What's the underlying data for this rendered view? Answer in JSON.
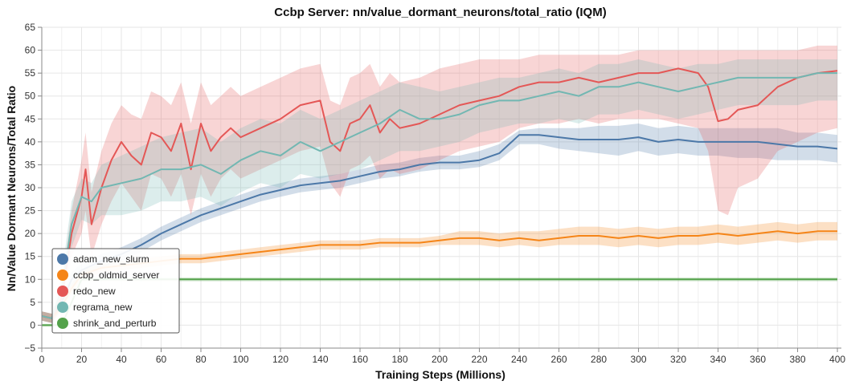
{
  "chart_data": {
    "type": "line",
    "title": "Ccbp Server: nn/value_dormant_neurons/total_ratio (IQM)",
    "xlabel": "Training Steps (Millions)",
    "ylabel": "Nn/Value Dormant Neurons/Total Ratio",
    "xlim": [
      0,
      402
    ],
    "ylim": [
      -5,
      65
    ],
    "xticks": [
      0,
      20,
      40,
      60,
      80,
      100,
      120,
      140,
      160,
      180,
      200,
      220,
      240,
      260,
      280,
      300,
      320,
      340,
      360,
      380,
      400
    ],
    "yticks": [
      -5,
      0,
      5,
      10,
      15,
      20,
      25,
      30,
      35,
      40,
      45,
      50,
      55,
      60,
      65
    ],
    "grid": true,
    "legend_position": "bottom-left",
    "series": [
      {
        "name": "adam_new_slurm",
        "color": "#4c78a8",
        "x": [
          0,
          5,
          10,
          15,
          20,
          30,
          40,
          50,
          60,
          70,
          80,
          90,
          100,
          110,
          120,
          130,
          140,
          150,
          160,
          170,
          180,
          190,
          200,
          210,
          220,
          230,
          240,
          250,
          260,
          270,
          280,
          290,
          300,
          310,
          320,
          330,
          340,
          350,
          360,
          370,
          380,
          390,
          400
        ],
        "y": [
          2,
          1.5,
          5,
          10,
          12,
          14,
          15.5,
          17.5,
          20,
          22,
          24,
          25.5,
          27,
          28.5,
          29.5,
          30.5,
          31,
          31.5,
          32.5,
          33.5,
          34,
          35,
          35.5,
          35.5,
          36,
          37.5,
          41.5,
          41.5,
          41,
          40.5,
          40.5,
          40.5,
          41,
          40,
          40.5,
          40,
          40,
          40,
          40,
          39.5,
          39,
          39,
          38.5
        ],
        "lower": [
          1,
          0.5,
          3.5,
          8.5,
          10.5,
          12.5,
          14,
          16,
          18.5,
          20.5,
          22.5,
          24,
          25.5,
          27,
          28,
          29,
          29.5,
          30,
          31,
          32,
          32.5,
          33.5,
          34,
          34,
          34.5,
          36,
          39.5,
          39.5,
          38.5,
          38,
          37.5,
          37,
          38,
          37,
          37.5,
          37,
          37,
          36.5,
          36.5,
          36,
          36,
          36,
          35.5
        ],
        "upper": [
          3,
          2.5,
          6.5,
          11.5,
          13.5,
          15.5,
          17,
          19,
          21.5,
          23.5,
          25.5,
          27,
          28.5,
          30,
          31,
          32,
          32.5,
          33,
          34,
          35,
          35.5,
          36.5,
          37,
          37,
          38,
          39.5,
          42.5,
          43,
          43,
          43,
          43.5,
          43.5,
          44,
          43,
          43.5,
          43,
          43,
          43,
          43,
          43,
          42,
          42,
          41.5
        ]
      },
      {
        "name": "ccbp_oldmid_server",
        "color": "#f58518",
        "x": [
          0,
          5,
          10,
          15,
          20,
          30,
          40,
          50,
          60,
          70,
          80,
          90,
          100,
          110,
          120,
          130,
          140,
          150,
          160,
          170,
          180,
          190,
          200,
          210,
          220,
          230,
          240,
          250,
          260,
          270,
          280,
          290,
          300,
          310,
          320,
          330,
          340,
          350,
          360,
          370,
          380,
          390,
          400
        ],
        "y": [
          2,
          1.5,
          4,
          8,
          11,
          12.5,
          13,
          13.5,
          14,
          14.5,
          14.5,
          15,
          15.5,
          16,
          16.5,
          17,
          17.5,
          17.5,
          17.5,
          18,
          18,
          18,
          18.5,
          19,
          19,
          18.5,
          19,
          18.5,
          19,
          19.5,
          19.5,
          19,
          19.5,
          19,
          19.5,
          19.5,
          20,
          19.5,
          20,
          20.5,
          20,
          20.5,
          20.5
        ],
        "lower": [
          1,
          0.5,
          3,
          7,
          10,
          11.5,
          12,
          12.5,
          13,
          13.5,
          13.5,
          14,
          14.5,
          15,
          15.5,
          16,
          16.5,
          16.5,
          16.5,
          17,
          17,
          17,
          17.5,
          17.5,
          17.5,
          17,
          17.5,
          17,
          17.5,
          17.5,
          17.5,
          17,
          17.5,
          17,
          17.5,
          17.5,
          18,
          17.5,
          18,
          18.5,
          18,
          18.5,
          18.5
        ],
        "upper": [
          3,
          2.5,
          5,
          9,
          12,
          13.5,
          14,
          14.5,
          15,
          15.5,
          15.5,
          16,
          16.5,
          17,
          17.5,
          18,
          18.5,
          18.5,
          18.5,
          19,
          19,
          19,
          19.5,
          20.5,
          20.5,
          20,
          20.5,
          20.5,
          21,
          21.5,
          21.5,
          21,
          21.5,
          21,
          21.5,
          21.5,
          22,
          21.5,
          22,
          22.5,
          22,
          22.5,
          22.5
        ]
      },
      {
        "name": "redo_new",
        "color": "#e45756",
        "x": [
          0,
          5,
          10,
          15,
          20,
          22,
          25,
          30,
          35,
          40,
          45,
          50,
          55,
          60,
          65,
          70,
          75,
          80,
          85,
          90,
          95,
          100,
          110,
          120,
          130,
          140,
          145,
          150,
          155,
          160,
          165,
          170,
          175,
          180,
          190,
          200,
          210,
          220,
          230,
          240,
          250,
          260,
          270,
          280,
          290,
          300,
          310,
          320,
          330,
          335,
          340,
          345,
          350,
          360,
          370,
          380,
          390,
          400
        ],
        "y": [
          2,
          1.5,
          6,
          20,
          28,
          34,
          22,
          30,
          36,
          40,
          37,
          35,
          42,
          41,
          38,
          44,
          34,
          44,
          38,
          41,
          43,
          41,
          43,
          45,
          48,
          49,
          40,
          38,
          44,
          45,
          48,
          42,
          45,
          43,
          44,
          46,
          48,
          49,
          50,
          52,
          53,
          53,
          54,
          53,
          54,
          55,
          55,
          56,
          55,
          52,
          44.5,
          45,
          47,
          48,
          52,
          54,
          55,
          55.5
        ],
        "lower": [
          1,
          0.5,
          4,
          15,
          20,
          25,
          15,
          22,
          27,
          31,
          28,
          25,
          33,
          32,
          28,
          33,
          24,
          33,
          28,
          32,
          34,
          32,
          34,
          36,
          38,
          39,
          31,
          28,
          34,
          35,
          37,
          32,
          34,
          33,
          34,
          36,
          38,
          39,
          40,
          43,
          44,
          44,
          45,
          44,
          45,
          45,
          45,
          44,
          43,
          38,
          25,
          24,
          30,
          32,
          38,
          40,
          42,
          43
        ],
        "upper": [
          3,
          2.5,
          8,
          25,
          36,
          42,
          29,
          38,
          44,
          48,
          46,
          45,
          51,
          50,
          48,
          53,
          44,
          53,
          48,
          50,
          52,
          50,
          52,
          54,
          56,
          57,
          49,
          48,
          54,
          55,
          57,
          52,
          55,
          53,
          54,
          56,
          57,
          58,
          58,
          58,
          59,
          59,
          59,
          59,
          59,
          60,
          60,
          60,
          60,
          60,
          60,
          60,
          60,
          60,
          60,
          60,
          61,
          61
        ]
      },
      {
        "name": "regrama_new",
        "color": "#72b7b2",
        "x": [
          0,
          5,
          10,
          15,
          20,
          25,
          30,
          40,
          50,
          60,
          70,
          80,
          90,
          100,
          110,
          120,
          130,
          140,
          150,
          160,
          170,
          180,
          190,
          200,
          210,
          220,
          230,
          240,
          250,
          260,
          270,
          280,
          290,
          300,
          310,
          320,
          330,
          340,
          350,
          360,
          370,
          380,
          390,
          400
        ],
        "y": [
          2,
          1.5,
          8,
          22,
          28,
          27,
          30,
          31,
          32,
          34,
          34,
          35,
          33,
          36,
          38,
          37,
          40,
          38,
          40,
          42,
          44,
          47,
          45,
          45,
          46,
          48,
          49,
          49,
          50,
          51,
          50,
          52,
          52,
          53,
          52,
          51,
          52,
          53,
          54,
          54,
          54,
          54,
          55,
          55
        ],
        "lower": [
          1,
          0.5,
          5,
          17,
          23,
          22,
          24,
          24,
          25,
          27,
          27,
          28,
          26,
          29,
          31,
          30,
          33,
          32,
          33,
          34,
          36,
          38,
          38,
          39,
          40,
          42,
          43,
          44,
          44,
          45,
          44,
          46,
          46,
          47,
          46,
          45,
          46,
          47,
          48,
          48,
          48,
          48,
          49,
          49
        ],
        "upper": [
          3,
          2.5,
          11,
          27,
          32,
          31,
          35,
          37,
          39,
          41,
          42,
          43,
          40,
          43,
          45,
          44,
          47,
          45,
          47,
          49,
          51,
          53,
          52,
          51,
          52,
          53,
          54,
          54,
          55,
          56,
          55,
          57,
          57,
          58,
          57,
          56,
          57,
          57,
          58,
          58,
          58,
          58,
          58,
          58
        ]
      },
      {
        "name": "shrink_and_perturb",
        "color": "#54a24b",
        "x": [
          0,
          10,
          20,
          30,
          40,
          60,
          80,
          100,
          120,
          140,
          160,
          180,
          200,
          220,
          240,
          260,
          280,
          300,
          320,
          340,
          360,
          380,
          400
        ],
        "y": [
          0,
          0,
          10,
          10,
          10,
          10,
          10,
          10,
          10,
          10,
          10,
          10,
          10,
          10,
          10,
          10,
          10,
          10,
          10,
          10,
          10,
          10,
          10
        ],
        "lower": [
          -0.3,
          -0.3,
          9.6,
          9.6,
          9.6,
          9.6,
          9.6,
          9.6,
          9.6,
          9.6,
          9.6,
          9.6,
          9.6,
          9.6,
          9.6,
          9.6,
          9.6,
          9.6,
          9.6,
          9.6,
          9.6,
          9.6,
          9.6
        ],
        "upper": [
          0.3,
          0.3,
          10.4,
          10.4,
          10.4,
          10.4,
          10.4,
          10.4,
          10.4,
          10.4,
          10.4,
          10.4,
          10.4,
          10.4,
          10.4,
          10.4,
          10.4,
          10.4,
          10.4,
          10.4,
          10.4,
          10.4,
          10.4
        ]
      }
    ]
  }
}
